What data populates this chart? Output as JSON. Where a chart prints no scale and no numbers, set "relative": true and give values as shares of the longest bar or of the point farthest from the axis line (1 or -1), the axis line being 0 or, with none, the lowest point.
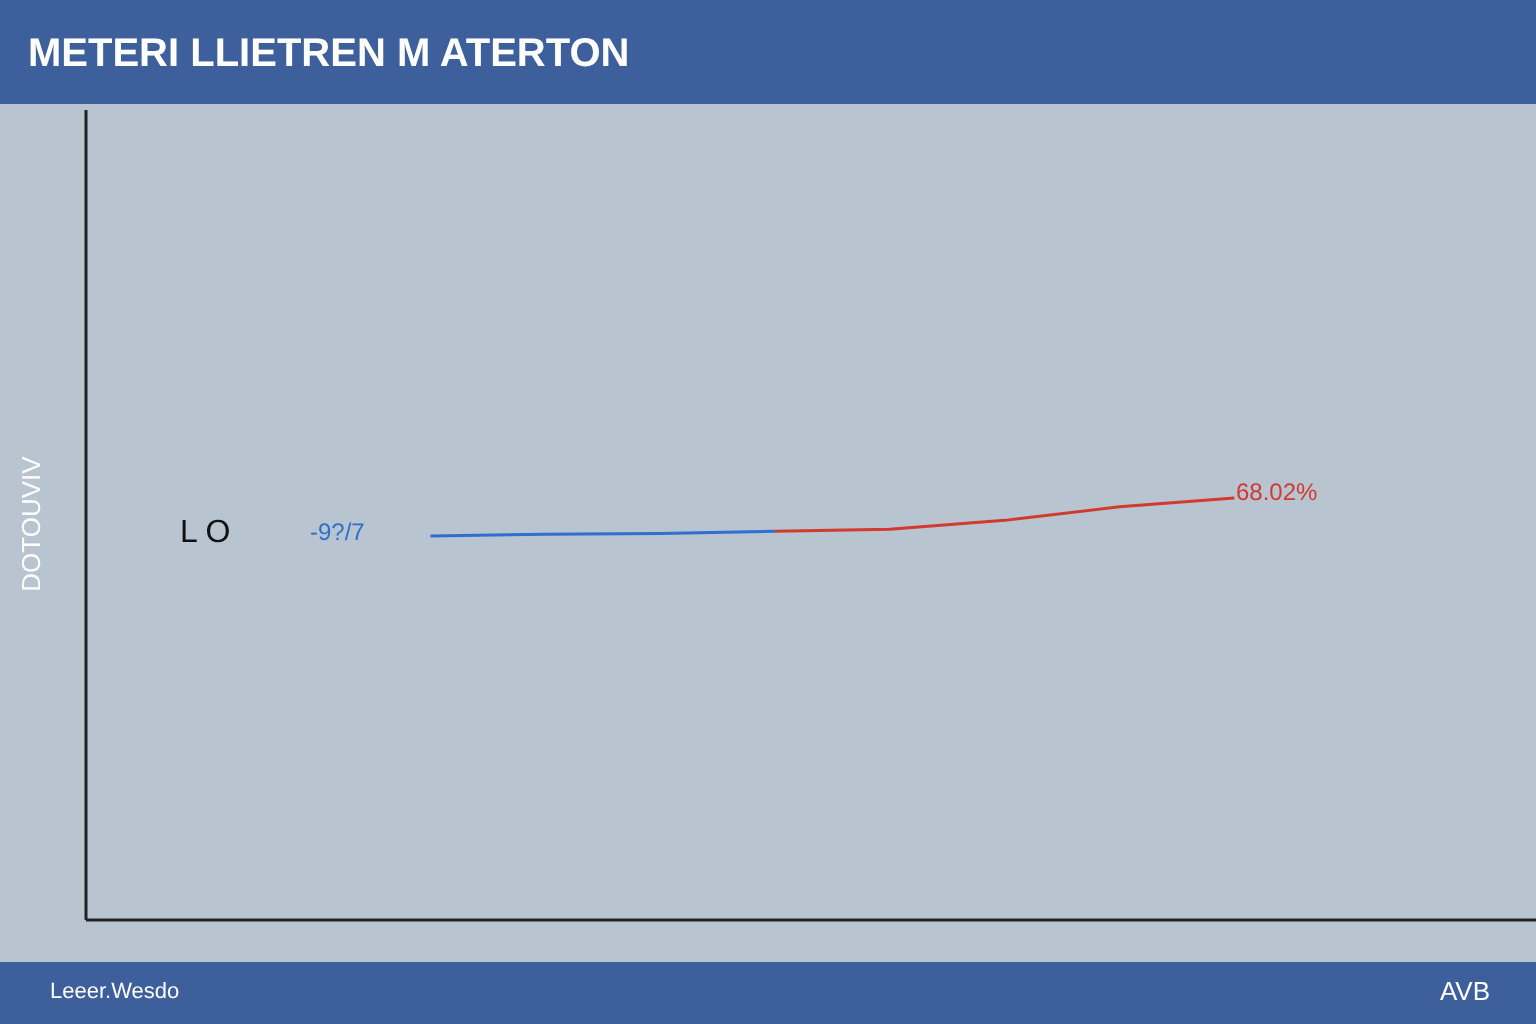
{
  "chart_data": {
    "type": "line",
    "title": "METERI LLIETREN M ATERTON",
    "ylabel": "DOTOUVIV",
    "relative": true,
    "marker": "none",
    "categories": [
      null,
      null,
      null,
      null,
      null,
      null,
      null,
      null,
      null,
      null,
      null,
      null,
      null
    ],
    "series": [
      {
        "color": "#2f6fd0",
        "values": [
          null,
          null,
          null,
          0.91,
          0.914,
          0.916,
          0.921,
          null,
          null,
          null,
          null,
          null,
          null
        ]
      },
      {
        "color": "#d23a2f",
        "values": [
          null,
          null,
          null,
          null,
          null,
          null,
          0.921,
          0.926,
          0.947,
          0.979,
          1,
          null,
          null
        ]
      }
    ],
    "annotations": [
      "L O",
      "-9?/7",
      "68.02%",
      "Leeer.Wesdo",
      "AVB"
    ]
  }
}
